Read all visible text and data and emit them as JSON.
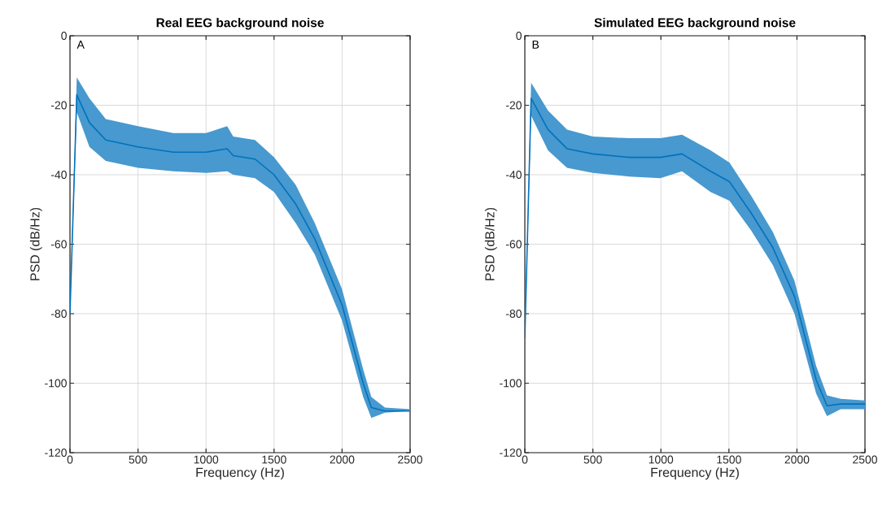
{
  "chart_data": [
    {
      "type": "line",
      "title": "Real EEG background noise",
      "xlabel": "Frequency (Hz)",
      "ylabel": "PSD (dB/Hz)",
      "annotations": [
        "A"
      ],
      "x": [
        0,
        50,
        143,
        263,
        500,
        760,
        1000,
        1155,
        1200,
        1360,
        1500,
        1660,
        1800,
        2000,
        2155,
        2215,
        2315,
        2500
      ],
      "series": [
        {
          "color": "#0072bd",
          "values": [
            -80,
            -17,
            -25,
            -30,
            -32,
            -33.5,
            -33.5,
            -32.5,
            -34.5,
            -35.5,
            -40,
            -48.5,
            -58.5,
            -77.5,
            -100,
            -107,
            -108,
            -108
          ],
          "upper": [
            -80,
            -12,
            -18,
            -24,
            -26,
            -28,
            -28,
            -26,
            -29,
            -30,
            -35,
            -43,
            -54,
            -73,
            -96,
            -104,
            -107,
            -107.5
          ],
          "lower": [
            -80,
            -22,
            -32,
            -36,
            -38,
            -39,
            -39.5,
            -39,
            -40,
            -41,
            -45,
            -54,
            -63,
            -82,
            -104,
            -110,
            -108.5,
            -108
          ]
        }
      ],
      "xlim": [
        0,
        2500
      ],
      "ylim": [
        -120,
        0
      ],
      "xticks": [
        0,
        500,
        1000,
        1500,
        2000,
        2500
      ],
      "yticks": [
        -120,
        -100,
        -80,
        -60,
        -40,
        -20,
        0
      ],
      "grid": true
    },
    {
      "type": "line",
      "title": "Simulated EEG background noise",
      "xlabel": "Frequency (Hz)",
      "ylabel": "PSD (dB/Hz)",
      "annotations": [
        "B"
      ],
      "x": [
        0,
        46,
        170,
        310,
        500,
        767,
        996,
        1155,
        1365,
        1504,
        1663,
        1823,
        1982,
        2141,
        2221,
        2321,
        2500
      ],
      "series": [
        {
          "color": "#0072bd",
          "values": [
            -87,
            -18,
            -27,
            -32.5,
            -34,
            -35,
            -35,
            -34,
            -39,
            -42,
            -51,
            -61,
            -75,
            -99,
            -106.5,
            -106,
            -106
          ],
          "upper": [
            -87,
            -13.5,
            -21.5,
            -27,
            -29,
            -29.5,
            -29.5,
            -28.5,
            -33,
            -36.5,
            -46,
            -56.5,
            -70.5,
            -95,
            -103.5,
            -104.5,
            -105
          ],
          "lower": [
            -87,
            -23,
            -33,
            -38,
            -39.5,
            -40.5,
            -41,
            -39,
            -45,
            -47.5,
            -56,
            -66,
            -80,
            -103,
            -109.5,
            -107.5,
            -107.5
          ]
        }
      ],
      "xlim": [
        0,
        2500
      ],
      "ylim": [
        -120,
        0
      ],
      "xticks": [
        0,
        500,
        1000,
        1500,
        2000,
        2500
      ],
      "yticks": [
        -120,
        -100,
        -80,
        -60,
        -40,
        -20,
        0
      ],
      "grid": true
    }
  ]
}
